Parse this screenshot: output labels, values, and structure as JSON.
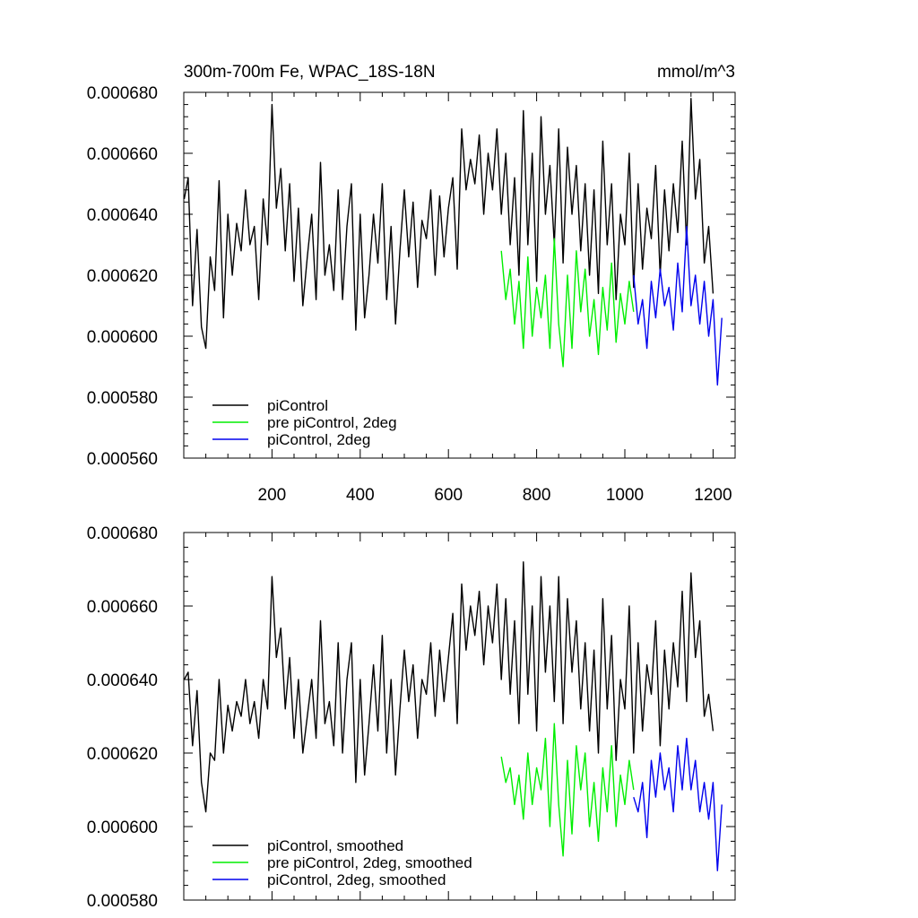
{
  "chart_data": [
    {
      "type": "line",
      "panel": "top",
      "title": "300m-700m Fe, WPAC_18S-18N",
      "units": "mmol/m^3",
      "xlim": [
        0,
        1250
      ],
      "ylim": [
        0.00056,
        0.00068
      ],
      "yticks": [
        "0.000560",
        "0.000580",
        "0.000600",
        "0.000620",
        "0.000640",
        "0.000660",
        "0.000680"
      ],
      "xticks": [
        "200",
        "400",
        "600",
        "800",
        "1000",
        "1200"
      ],
      "legend_position": "bottom-left",
      "series": [
        {
          "name": "piControl",
          "color": "#000000",
          "x": [
            1,
            10,
            20,
            30,
            40,
            50,
            60,
            70,
            80,
            90,
            100,
            110,
            120,
            130,
            140,
            150,
            160,
            170,
            180,
            190,
            200,
            210,
            220,
            230,
            240,
            250,
            260,
            270,
            280,
            290,
            300,
            310,
            320,
            330,
            340,
            350,
            360,
            370,
            380,
            390,
            400,
            410,
            420,
            430,
            440,
            450,
            460,
            470,
            480,
            490,
            500,
            510,
            520,
            530,
            540,
            550,
            560,
            570,
            580,
            590,
            600,
            610,
            620,
            630,
            640,
            650,
            660,
            670,
            680,
            690,
            700,
            710,
            720,
            730,
            740,
            750,
            760,
            770,
            780,
            790,
            800,
            810,
            820,
            830,
            840,
            850,
            860,
            870,
            880,
            890,
            900,
            910,
            920,
            930,
            940,
            950,
            960,
            970,
            980,
            990,
            1000,
            1010,
            1020,
            1030,
            1040,
            1050,
            1060,
            1070,
            1080,
            1090,
            1100,
            1110,
            1120,
            1130,
            1140,
            1150,
            1160,
            1170,
            1180,
            1190,
            1200
          ],
          "y": [
            0.000645,
            0.000652,
            0.00061,
            0.000635,
            0.000603,
            0.000596,
            0.000626,
            0.000615,
            0.000651,
            0.000606,
            0.00064,
            0.00062,
            0.000637,
            0.000628,
            0.000648,
            0.00063,
            0.000636,
            0.000612,
            0.000645,
            0.00063,
            0.000676,
            0.000642,
            0.000655,
            0.000628,
            0.00065,
            0.000618,
            0.000642,
            0.00061,
            0.000626,
            0.00064,
            0.000612,
            0.000657,
            0.00062,
            0.00063,
            0.000615,
            0.000648,
            0.000612,
            0.000636,
            0.00065,
            0.000602,
            0.00064,
            0.000606,
            0.00062,
            0.00064,
            0.000624,
            0.00065,
            0.000612,
            0.000636,
            0.000604,
            0.000628,
            0.000648,
            0.000626,
            0.000644,
            0.000616,
            0.000638,
            0.000632,
            0.000648,
            0.00062,
            0.000646,
            0.000626,
            0.000642,
            0.000652,
            0.000622,
            0.000668,
            0.000648,
            0.000658,
            0.00065,
            0.000666,
            0.00064,
            0.00066,
            0.000648,
            0.000668,
            0.00064,
            0.00066,
            0.00063,
            0.000652,
            0.00062,
            0.000674,
            0.00063,
            0.00066,
            0.000618,
            0.000672,
            0.00064,
            0.000656,
            0.00063,
            0.000668,
            0.000624,
            0.000662,
            0.00064,
            0.000656,
            0.000628,
            0.00065,
            0.00062,
            0.000648,
            0.000614,
            0.000664,
            0.00063,
            0.00065,
            0.000612,
            0.00064,
            0.00063,
            0.00066,
            0.000616,
            0.00065,
            0.000622,
            0.000642,
            0.000632,
            0.000656,
            0.00062,
            0.000648,
            0.000628,
            0.00065,
            0.000634,
            0.000664,
            0.00063,
            0.000678,
            0.000645,
            0.000658,
            0.000624,
            0.000636,
            0.000614
          ]
        },
        {
          "name": "pre piControl, 2deg",
          "color": "#00ee00",
          "x": [
            720,
            730,
            740,
            750,
            760,
            770,
            780,
            790,
            800,
            810,
            820,
            830,
            840,
            850,
            860,
            870,
            880,
            890,
            900,
            910,
            920,
            930,
            940,
            950,
            960,
            970,
            980,
            990,
            1000,
            1010,
            1020
          ],
          "y": [
            0.000628,
            0.000612,
            0.000622,
            0.000604,
            0.000618,
            0.000596,
            0.000626,
            0.0006,
            0.000616,
            0.000606,
            0.00062,
            0.000596,
            0.000632,
            0.000604,
            0.00059,
            0.00062,
            0.000596,
            0.000628,
            0.000608,
            0.000622,
            0.0006,
            0.000612,
            0.000594,
            0.000616,
            0.000602,
            0.000624,
            0.000598,
            0.000614,
            0.000604,
            0.000618,
            0.000608
          ]
        },
        {
          "name": "piControl, 2deg",
          "color": "#0000ee",
          "x": [
            1020,
            1030,
            1040,
            1050,
            1060,
            1070,
            1080,
            1090,
            1100,
            1110,
            1120,
            1130,
            1140,
            1150,
            1160,
            1170,
            1180,
            1190,
            1200,
            1210,
            1220
          ],
          "y": [
            0.00062,
            0.000604,
            0.000612,
            0.000596,
            0.000618,
            0.000606,
            0.000622,
            0.00061,
            0.000616,
            0.000602,
            0.000624,
            0.000608,
            0.000636,
            0.00061,
            0.00062,
            0.000604,
            0.000618,
            0.0006,
            0.000612,
            0.000584,
            0.000606
          ]
        }
      ],
      "legend": [
        "piControl",
        "pre piControl, 2deg",
        "piControl, 2deg"
      ]
    },
    {
      "type": "line",
      "panel": "bottom",
      "xlim": [
        0,
        1250
      ],
      "ylim": [
        0.00058,
        0.00068
      ],
      "yticks": [
        "0.000580",
        "0.000600",
        "0.000620",
        "0.000640",
        "0.000660",
        "0.000680"
      ],
      "legend_position": "bottom-left",
      "series": [
        {
          "name": "piControl, smoothed",
          "color": "#000000",
          "x": [
            1,
            10,
            20,
            30,
            40,
            50,
            60,
            70,
            80,
            90,
            100,
            110,
            120,
            130,
            140,
            150,
            160,
            170,
            180,
            190,
            200,
            210,
            220,
            230,
            240,
            250,
            260,
            270,
            280,
            290,
            300,
            310,
            320,
            330,
            340,
            350,
            360,
            370,
            380,
            390,
            400,
            410,
            420,
            430,
            440,
            450,
            460,
            470,
            480,
            490,
            500,
            510,
            520,
            530,
            540,
            550,
            560,
            570,
            580,
            590,
            600,
            610,
            620,
            630,
            640,
            650,
            660,
            670,
            680,
            690,
            700,
            710,
            720,
            730,
            740,
            750,
            760,
            770,
            780,
            790,
            800,
            810,
            820,
            830,
            840,
            850,
            860,
            870,
            880,
            890,
            900,
            910,
            920,
            930,
            940,
            950,
            960,
            970,
            980,
            990,
            1000,
            1010,
            1020,
            1030,
            1040,
            1050,
            1060,
            1070,
            1080,
            1090,
            1100,
            1110,
            1120,
            1130,
            1140,
            1150,
            1160,
            1170,
            1180,
            1190,
            1200
          ],
          "y": [
            0.00064,
            0.000642,
            0.000622,
            0.000637,
            0.000612,
            0.000604,
            0.00062,
            0.000618,
            0.00064,
            0.00062,
            0.000633,
            0.000626,
            0.000634,
            0.00063,
            0.00064,
            0.000628,
            0.000634,
            0.000624,
            0.00064,
            0.000632,
            0.000668,
            0.000646,
            0.000654,
            0.000632,
            0.000646,
            0.000624,
            0.00064,
            0.00062,
            0.00063,
            0.00064,
            0.000624,
            0.000656,
            0.000628,
            0.000634,
            0.000622,
            0.00065,
            0.00062,
            0.00064,
            0.00065,
            0.000612,
            0.00064,
            0.000614,
            0.000628,
            0.000644,
            0.000626,
            0.000652,
            0.00062,
            0.00064,
            0.000614,
            0.000632,
            0.000648,
            0.000634,
            0.000644,
            0.000624,
            0.00064,
            0.000636,
            0.00065,
            0.00063,
            0.000648,
            0.000634,
            0.000646,
            0.000658,
            0.000628,
            0.000666,
            0.000648,
            0.00066,
            0.000652,
            0.000664,
            0.000644,
            0.00066,
            0.00065,
            0.000666,
            0.00064,
            0.000662,
            0.000636,
            0.000656,
            0.000628,
            0.000672,
            0.000636,
            0.00066,
            0.000626,
            0.000668,
            0.000642,
            0.00066,
            0.000634,
            0.000668,
            0.000628,
            0.000662,
            0.000642,
            0.000656,
            0.000632,
            0.00065,
            0.000626,
            0.000648,
            0.00062,
            0.000662,
            0.000632,
            0.000652,
            0.000618,
            0.00064,
            0.000632,
            0.00066,
            0.00062,
            0.00065,
            0.000626,
            0.000644,
            0.000636,
            0.000656,
            0.000622,
            0.000648,
            0.000632,
            0.00065,
            0.000638,
            0.000664,
            0.000634,
            0.000669,
            0.000646,
            0.000656,
            0.00063,
            0.000636,
            0.000626
          ]
        },
        {
          "name": "pre piControl, 2deg, smoothed",
          "color": "#00ee00",
          "x": [
            720,
            730,
            740,
            750,
            760,
            770,
            780,
            790,
            800,
            810,
            820,
            830,
            840,
            850,
            860,
            870,
            880,
            890,
            900,
            910,
            920,
            930,
            940,
            950,
            960,
            970,
            980,
            990,
            1000,
            1010,
            1020
          ],
          "y": [
            0.000619,
            0.000612,
            0.000616,
            0.000606,
            0.000614,
            0.000602,
            0.00062,
            0.000606,
            0.000616,
            0.00061,
            0.000624,
            0.0006,
            0.000628,
            0.000606,
            0.000592,
            0.000618,
            0.000598,
            0.000622,
            0.00061,
            0.00062,
            0.0006,
            0.000612,
            0.000596,
            0.000616,
            0.000604,
            0.000622,
            0.0006,
            0.000614,
            0.000606,
            0.000618,
            0.00061
          ]
        },
        {
          "name": "piControl, 2deg, smoothed",
          "color": "#0000ee",
          "x": [
            1020,
            1030,
            1040,
            1050,
            1060,
            1070,
            1080,
            1090,
            1100,
            1110,
            1120,
            1130,
            1140,
            1150,
            1160,
            1170,
            1180,
            1190,
            1200,
            1210,
            1220
          ],
          "y": [
            0.000608,
            0.000604,
            0.000612,
            0.000597,
            0.000618,
            0.000608,
            0.00062,
            0.00061,
            0.000616,
            0.000604,
            0.000622,
            0.00061,
            0.000624,
            0.00061,
            0.000618,
            0.000604,
            0.000612,
            0.000602,
            0.000612,
            0.000588,
            0.000606
          ]
        }
      ],
      "legend": [
        "piControl, smoothed",
        "pre piControl, 2deg, smoothed",
        "piControl, 2deg, smoothed"
      ]
    }
  ]
}
